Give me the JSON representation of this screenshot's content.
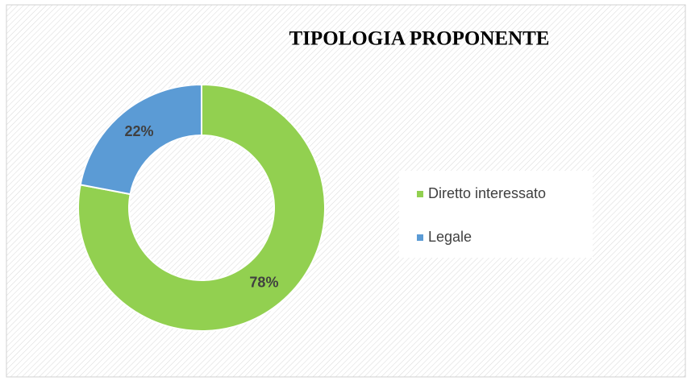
{
  "chart_data": {
    "type": "pie",
    "title": "TIPOLOGIA PROPONENTE",
    "categories": [
      "Diretto interessato",
      "Legale"
    ],
    "values": [
      78,
      22
    ],
    "value_labels": [
      "78%",
      "22%"
    ],
    "colors": [
      "#92d050",
      "#5b9bd5"
    ],
    "donut": true,
    "legend": "right"
  }
}
